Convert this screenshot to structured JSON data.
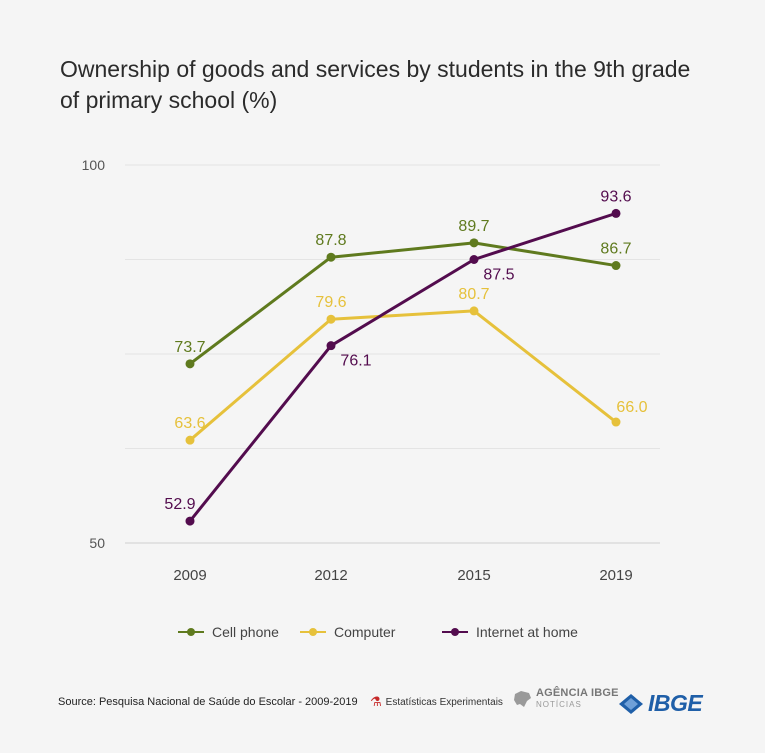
{
  "title": "Ownership of goods and services by students in the 9th grade of primary school (%)",
  "chart_data": {
    "type": "line",
    "title": "Ownership of goods and services by students in the 9th grade of primary school (%)",
    "x": [
      "2009",
      "2012",
      "2015",
      "2019"
    ],
    "ylim": [
      50,
      100
    ],
    "yticks": [
      50,
      100
    ],
    "grid": true,
    "legend_position": "bottom",
    "series": [
      {
        "name": "Cell phone",
        "color": "#5f7a1e",
        "values": [
          73.7,
          87.8,
          89.7,
          86.7
        ],
        "labels": [
          "73.7",
          "87.8",
          "89.7",
          "86.7"
        ],
        "label_pos": [
          "above",
          "above",
          "above",
          "above"
        ]
      },
      {
        "name": "Computer",
        "color": "#e6c13b",
        "values": [
          63.6,
          79.6,
          80.7,
          66.0
        ],
        "labels": [
          "63.6",
          "79.6",
          "80.7",
          "66.0"
        ],
        "label_pos": [
          "above",
          "above",
          "above",
          "above-right"
        ]
      },
      {
        "name": "Internet at home",
        "color": "#530c4e",
        "values": [
          52.9,
          76.1,
          87.5,
          93.6
        ],
        "labels": [
          "52.9",
          "76.1",
          "87.5",
          "93.6"
        ],
        "label_pos": [
          "above-left",
          "below-right",
          "below-right",
          "above"
        ]
      }
    ]
  },
  "footer": {
    "source": "Source: Pesquisa Nacional de Saúde do Escolar - 2009-2019",
    "estatisticas": "Estatísticas Experimentais",
    "agencia_main": "AGÊNCIA IBGE",
    "agencia_sub": "NOTÍCIAS",
    "ibge": "IBGE"
  }
}
